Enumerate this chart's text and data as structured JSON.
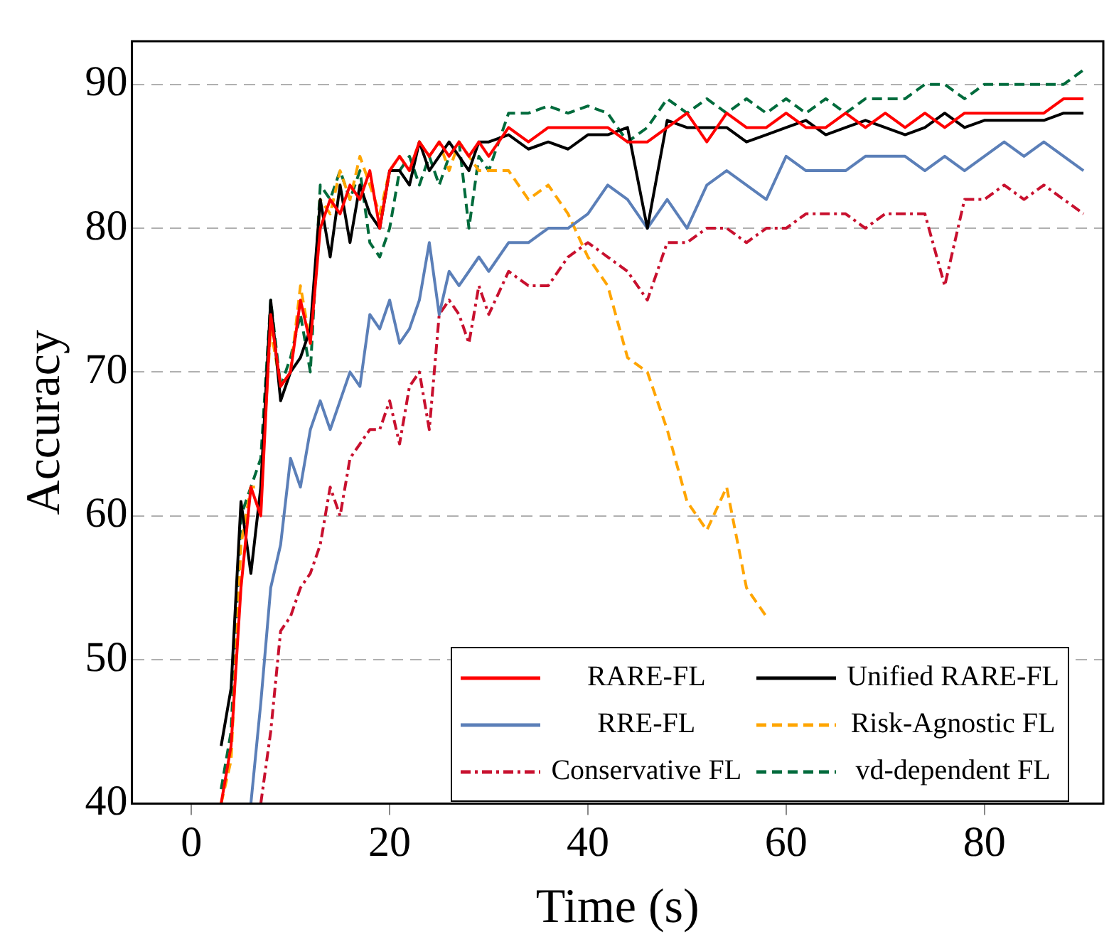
{
  "chart_data": {
    "type": "line",
    "xlabel": "Time (s)",
    "ylabel": "Accuracy",
    "x": [
      3,
      4,
      5,
      6,
      7,
      8,
      9,
      10,
      11,
      12,
      13,
      14,
      15,
      16,
      17,
      18,
      19,
      20,
      21,
      22,
      23,
      24,
      25,
      26,
      27,
      28,
      29,
      30,
      32,
      34,
      36,
      38,
      40,
      42,
      44,
      46,
      48,
      50,
      52,
      54,
      56,
      58,
      60,
      62,
      64,
      66,
      68,
      70,
      72,
      74,
      76,
      78,
      80,
      82,
      84,
      86,
      88,
      90
    ],
    "series": [
      {
        "name": "RARE-FL",
        "color": "#ff0000",
        "line_style": "solid",
        "values": [
          40,
          44,
          55,
          62,
          60,
          74,
          69,
          70,
          75,
          72,
          80,
          82,
          81,
          83,
          82,
          84,
          80,
          84,
          85,
          84,
          86,
          85,
          86,
          85,
          86,
          85,
          86,
          85,
          87,
          86,
          87,
          87,
          87,
          87,
          86,
          86,
          87,
          88,
          86,
          88,
          87,
          87,
          88,
          87,
          87,
          88,
          87,
          88,
          87,
          88,
          87,
          88,
          88,
          88,
          88,
          88,
          89,
          89
        ]
      },
      {
        "name": "Unified RARE-FL",
        "color": "#000000",
        "line_style": "solid",
        "values": [
          44,
          48,
          61,
          56,
          62,
          75,
          68,
          70,
          71,
          73,
          82,
          78,
          83,
          79,
          83,
          81,
          80,
          84,
          84,
          83,
          86,
          84,
          85,
          86,
          85,
          84,
          86,
          86,
          86.5,
          85.5,
          86,
          85.5,
          86.5,
          86.5,
          87,
          80,
          87.5,
          87,
          87,
          87,
          86,
          86.5,
          87,
          87.5,
          86.5,
          87,
          87.5,
          87,
          86.5,
          87,
          88,
          87,
          87.5,
          87.5,
          87.5,
          87.5,
          88,
          88
        ]
      },
      {
        "name": "RRE-FL",
        "color": "#5b7fb8",
        "line_style": "solid",
        "values": [
          null,
          null,
          null,
          40,
          47,
          55,
          58,
          64,
          62,
          66,
          68,
          66,
          68,
          70,
          69,
          74,
          73,
          75,
          72,
          73,
          75,
          79,
          74,
          77,
          76,
          77,
          78,
          77,
          79,
          79,
          80,
          80,
          81,
          83,
          82,
          80,
          82,
          80,
          83,
          84,
          83,
          82,
          85,
          84,
          84,
          84,
          85,
          85,
          85,
          84,
          85,
          84,
          85,
          86,
          85,
          86,
          85,
          84
        ]
      },
      {
        "name": "Risk-Agnostic FL",
        "color": "#ffa500",
        "line_style": "dashed",
        "values": [
          40,
          43,
          58,
          62,
          62,
          73,
          69,
          70,
          76,
          72,
          82,
          81,
          84,
          82,
          85,
          83,
          81,
          84,
          85,
          84,
          86,
          85,
          86,
          84,
          86,
          85,
          84,
          84,
          84,
          82,
          83,
          81,
          78,
          76,
          71,
          70,
          66,
          61,
          59,
          62,
          55,
          53,
          null,
          null,
          null,
          null,
          null,
          null,
          null,
          null,
          null,
          null,
          null,
          null,
          null,
          null,
          null,
          null
        ]
      },
      {
        "name": "Conservative FL",
        "color": "#c8102e",
        "line_style": "dotted",
        "values": [
          null,
          null,
          null,
          null,
          40,
          45,
          52,
          53,
          55,
          56,
          58,
          62,
          60,
          64,
          65,
          66,
          66,
          68,
          65,
          69,
          70,
          66,
          74,
          75,
          74,
          72,
          76,
          74,
          77,
          76,
          76,
          78,
          79,
          78,
          77,
          75,
          79,
          79,
          80,
          80,
          79,
          80,
          80,
          81,
          81,
          81,
          80,
          81,
          81,
          81,
          76,
          82,
          82,
          83,
          82,
          83,
          82,
          81
        ]
      },
      {
        "name": "vd-dependent FL",
        "color": "#006b3c",
        "line_style": "dashed",
        "values": [
          41,
          45,
          60,
          62,
          64,
          75,
          69,
          71,
          74,
          70,
          83,
          82,
          84,
          82,
          84,
          79,
          78,
          80,
          84,
          85,
          83,
          85,
          83,
          85,
          86,
          80,
          85,
          84,
          88,
          88,
          88.5,
          88,
          88.5,
          88,
          86,
          87,
          89,
          88,
          89,
          88,
          89,
          88,
          89,
          88,
          89,
          88,
          89,
          89,
          89,
          90,
          90,
          89,
          90,
          90,
          90,
          90,
          90,
          91
        ]
      }
    ],
    "xlim": [
      -6,
      92
    ],
    "xticks": [
      0,
      20,
      40,
      60,
      80
    ],
    "ylim": [
      40,
      93
    ],
    "yticks": [
      40,
      50,
      60,
      70,
      80,
      90
    ],
    "grid": "y",
    "legend": "bottom right"
  }
}
